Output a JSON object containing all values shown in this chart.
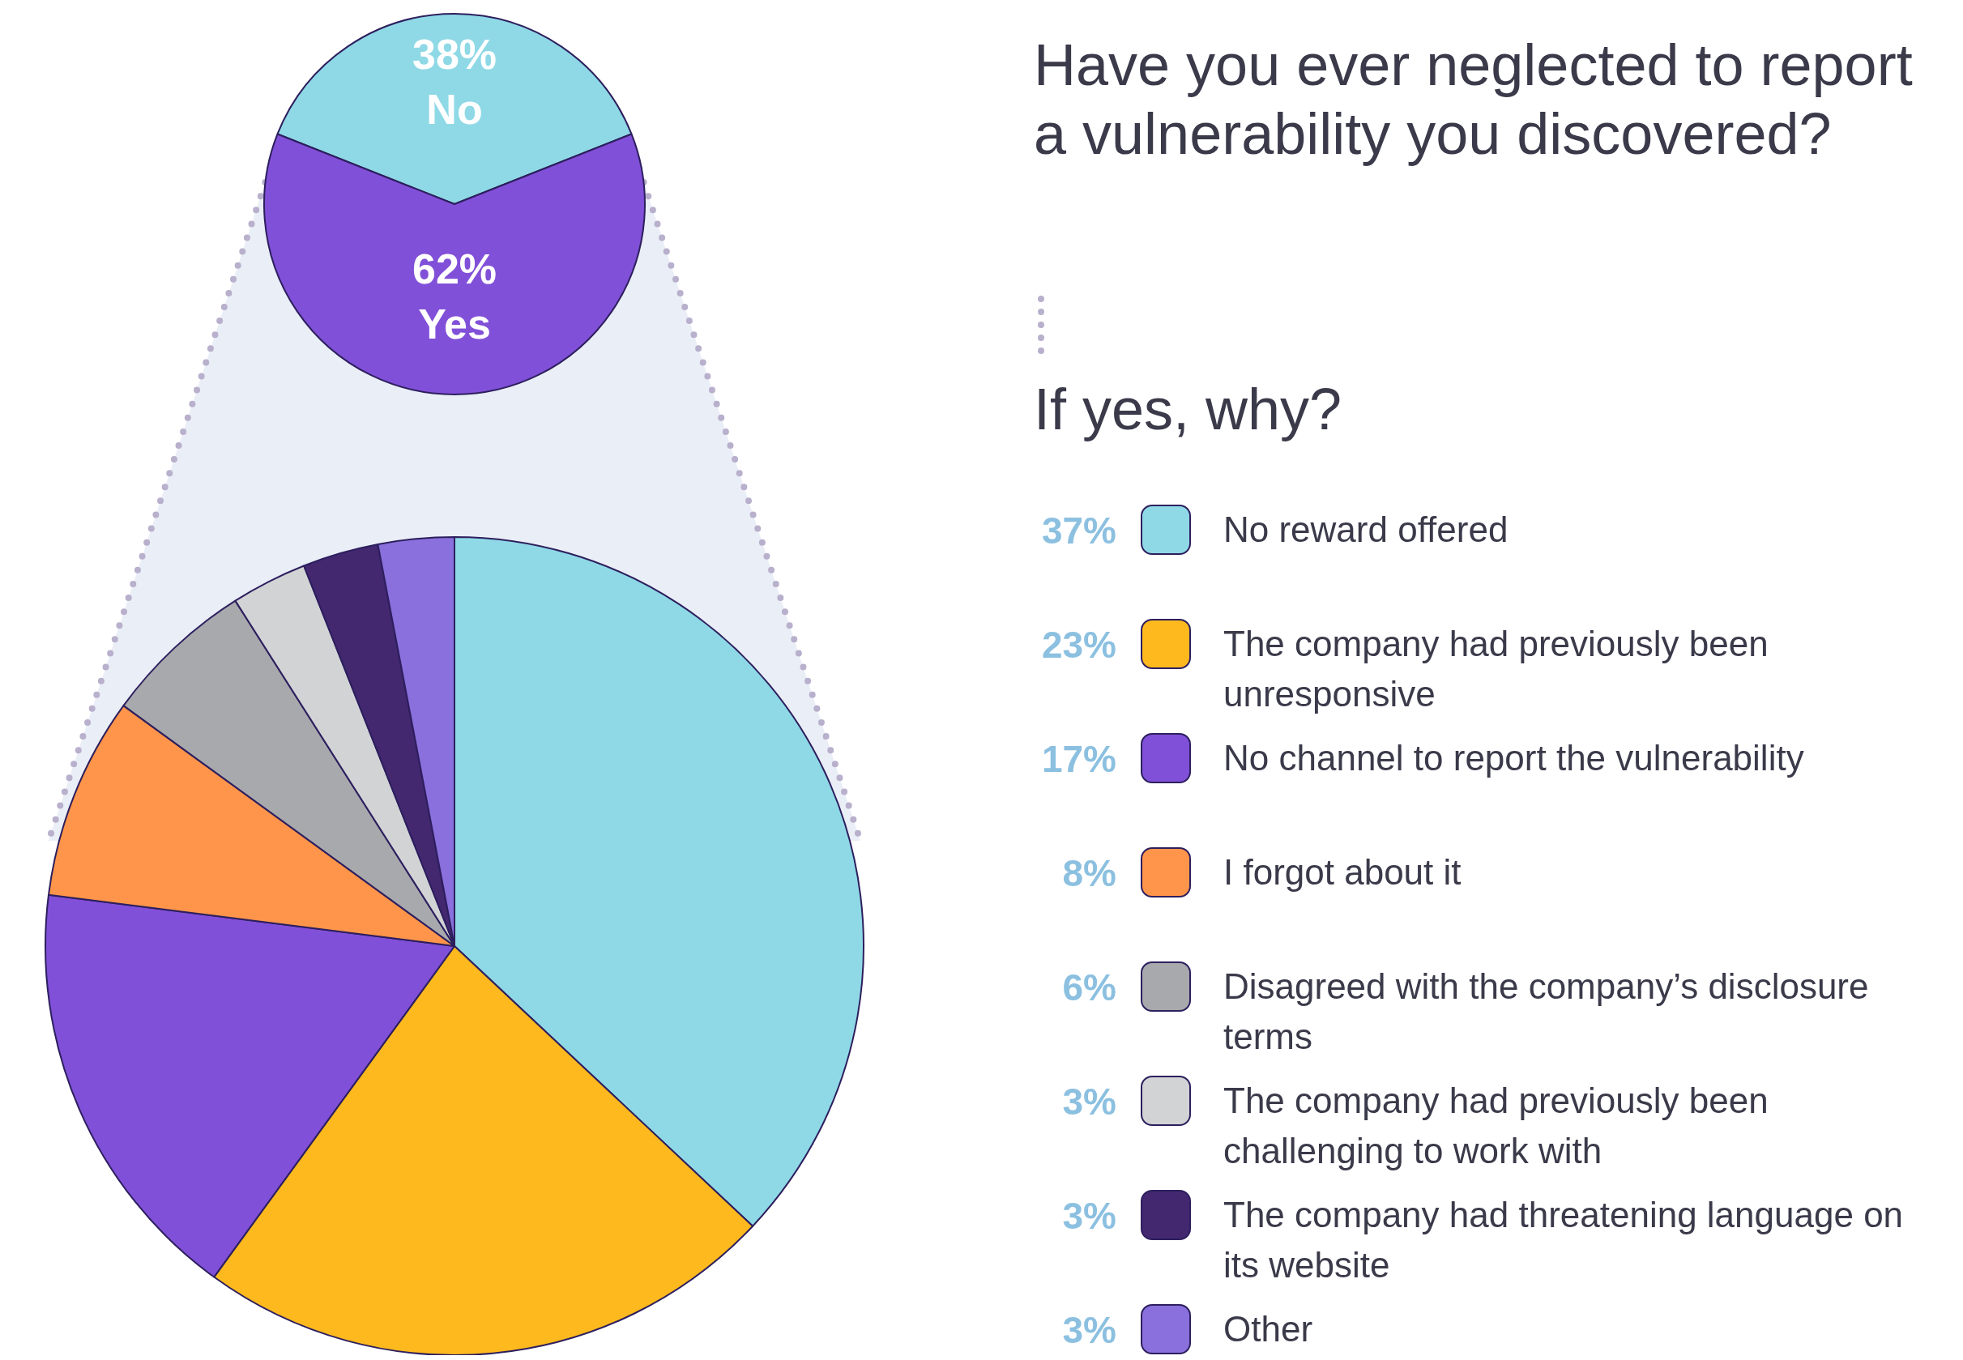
{
  "chart_data": [
    {
      "type": "pie",
      "title": "Have you ever neglected to report a vulnerability you discovered?",
      "categories": [
        "No",
        "Yes"
      ],
      "values": [
        38,
        62
      ],
      "colors": [
        "#8fd9e6",
        "#8150d8"
      ],
      "value_labels": [
        "38%",
        "62%"
      ],
      "legend": false
    },
    {
      "type": "pie",
      "title": "If yes, why?",
      "categories": [
        "No reward offered",
        "The company had previously been unresponsive",
        "No channel to report the vulnerability",
        "I forgot about it",
        "Disagreed with the company’s disclosure terms",
        "The company had previously been challenging to work with",
        "The company had threatening language on its website",
        "Other"
      ],
      "values": [
        37,
        23,
        17,
        8,
        6,
        3,
        3,
        3
      ],
      "colors": [
        "#8fd9e6",
        "#fdb91e",
        "#8150d8",
        "#ff954a",
        "#a8a9ad",
        "#d2d3d5",
        "#432870",
        "#8a70dc"
      ],
      "value_labels": [
        "37%",
        "23%",
        "17%",
        "8%",
        "6%",
        "3%",
        "3%",
        "3%"
      ],
      "legend": "right"
    }
  ]
}
